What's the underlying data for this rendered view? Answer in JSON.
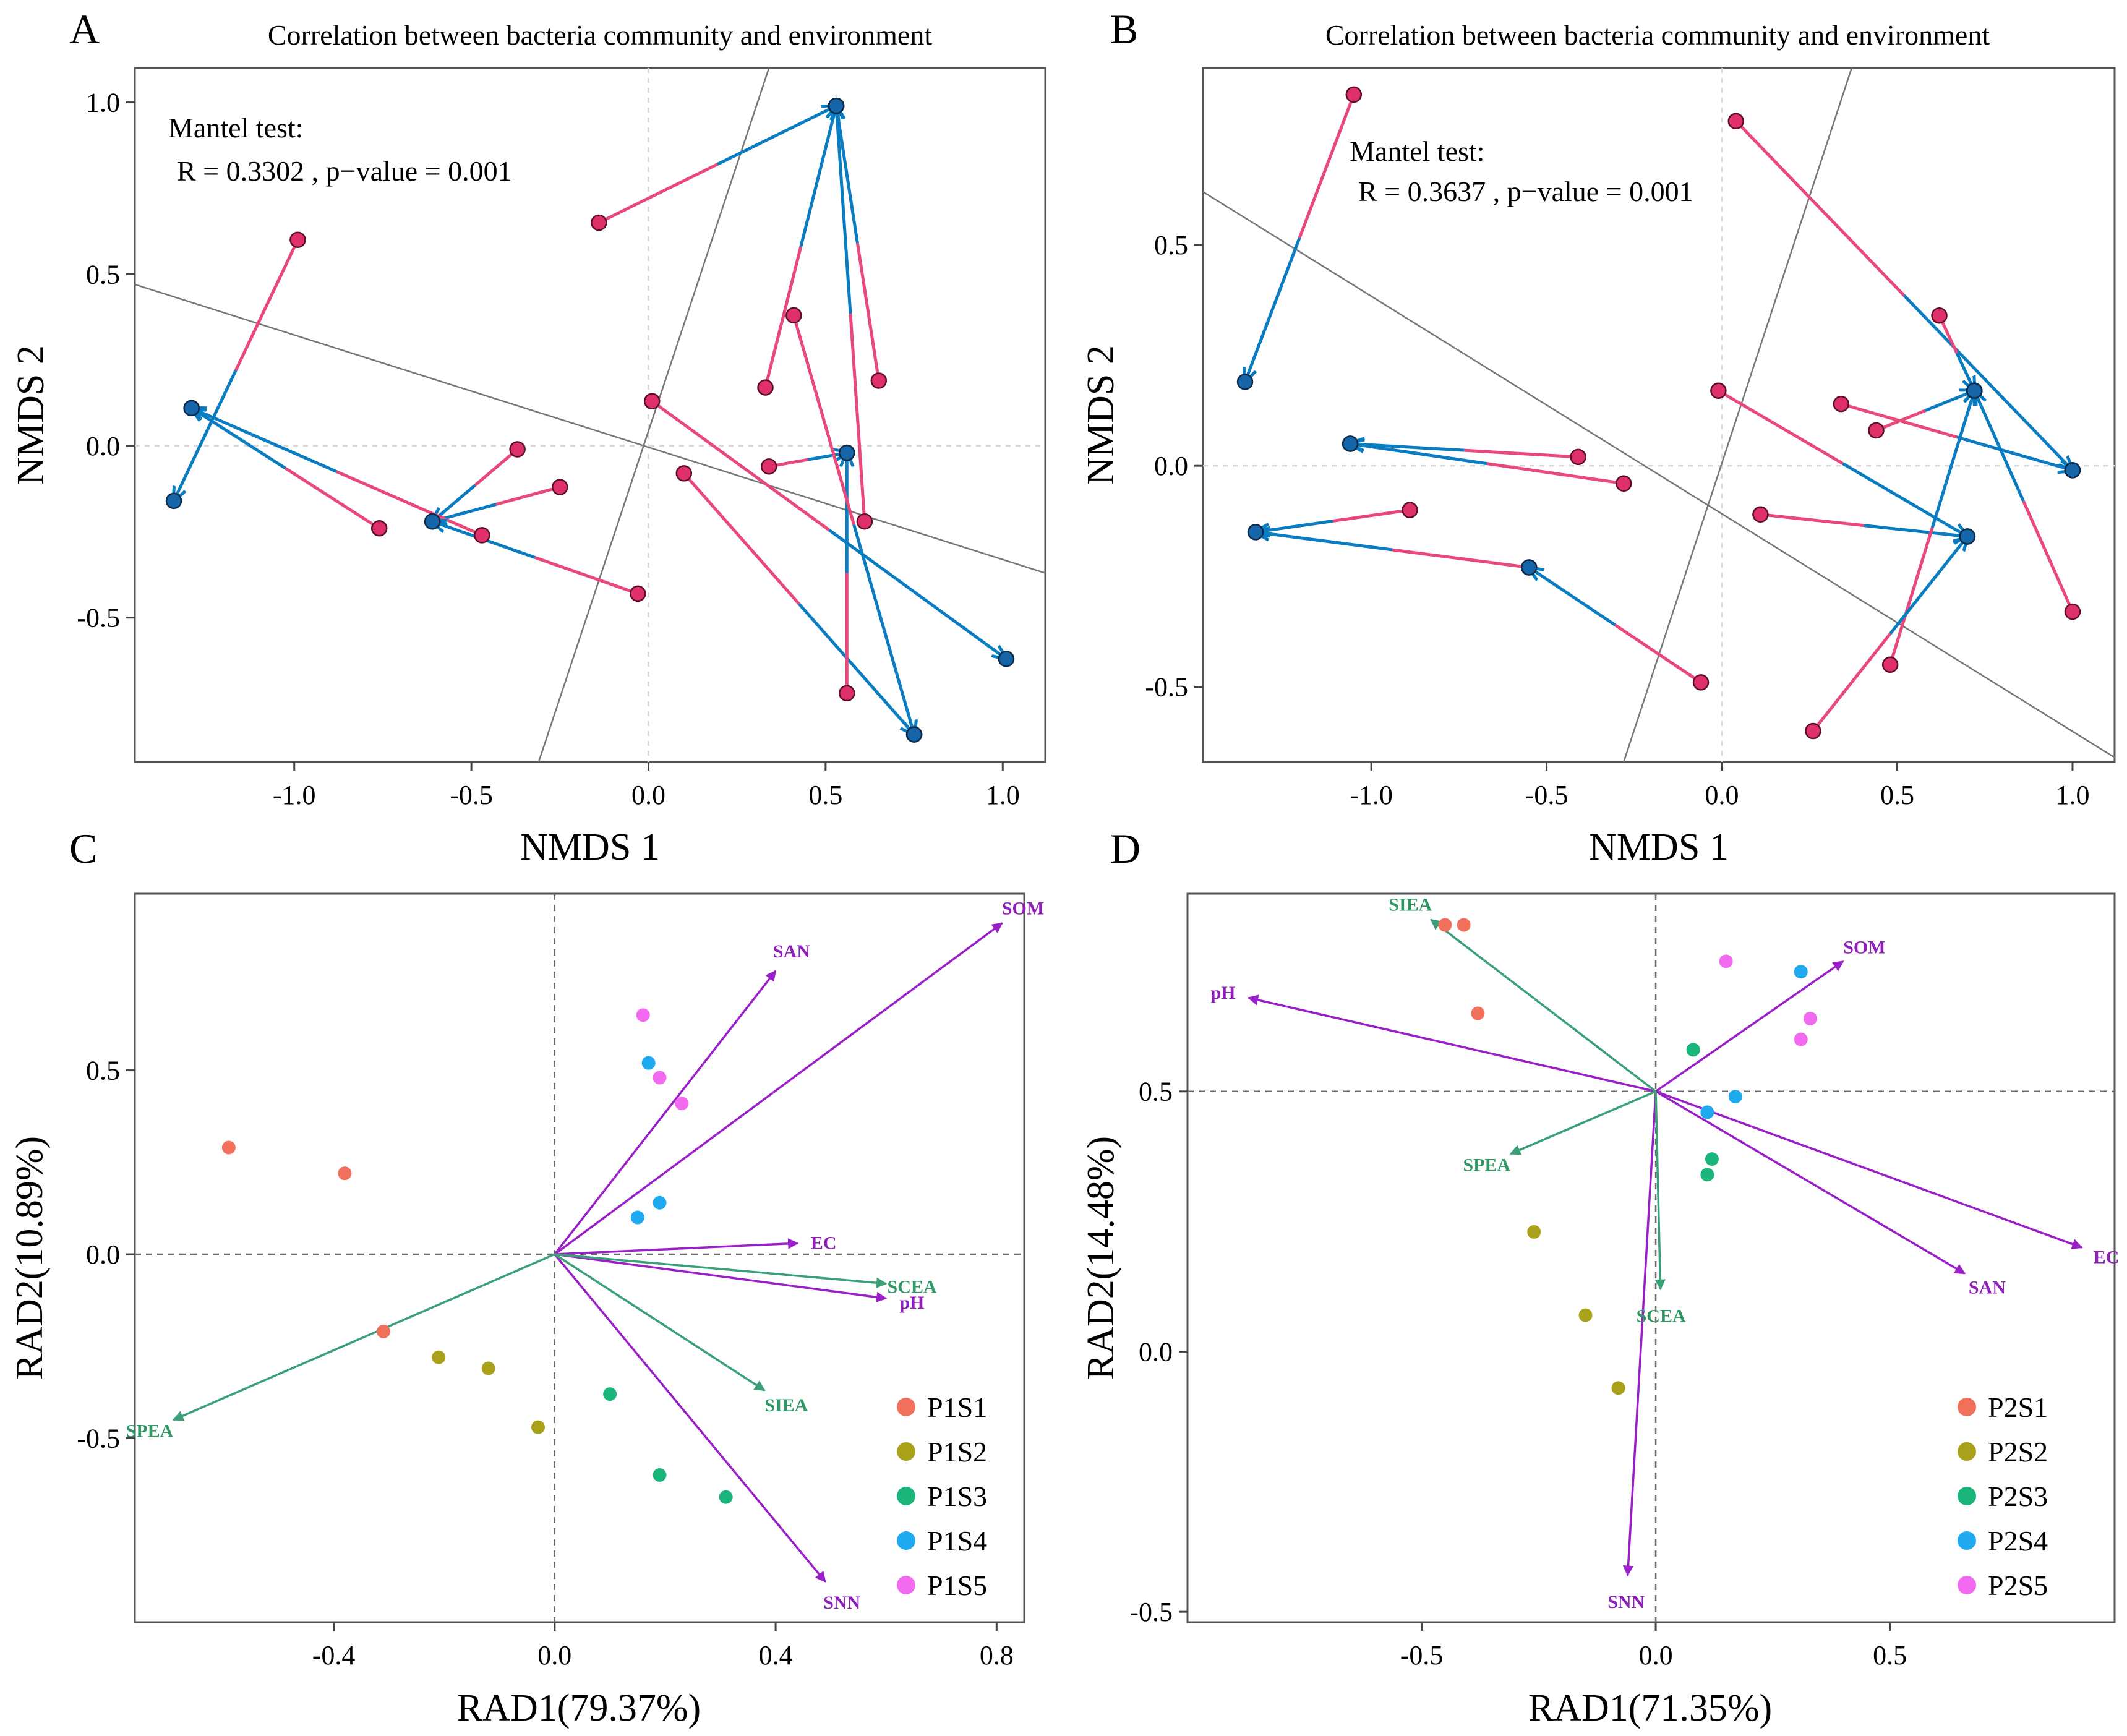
{
  "colors": {
    "procrustes_target": "#e8497a",
    "procrustes_point": "#e0306a",
    "procrustes_arrow": "#0a7cc2",
    "procrustes_dot": "#1565a8",
    "env_arrow": "#9b1fc9",
    "soil_arrow": "#3aa077",
    "env_label": "#8e1fb8",
    "soil_label": "#2e9864",
    "S1": "#f0705c",
    "S2": "#a9a11a",
    "S3": "#19b57a",
    "S4": "#1faaf0",
    "S5": "#f26af0"
  },
  "chart_data": [
    {
      "panel": "A",
      "type": "scatter",
      "subtype": "procrustes",
      "title": "Correlation between bacteria community and environment",
      "xlabel": "NMDS 1",
      "ylabel": "NMDS 2",
      "xlim": [
        -1.45,
        1.12
      ],
      "ylim": [
        -0.92,
        1.1
      ],
      "xticks": [
        -1.0,
        -0.5,
        0.0,
        0.5,
        1.0
      ],
      "yticks": [
        -0.5,
        0.0,
        0.5,
        1.0
      ],
      "xtick_labels": [
        "-1.0",
        "-0.5",
        "0.0",
        "0.5",
        "1.0"
      ],
      "ytick_labels": [
        "-0.5",
        "0.0",
        "0.5",
        "1.0"
      ],
      "annotation": [
        "Mantel test:",
        "R = 0.3302 , p−value = 0.001"
      ],
      "rotation_axes": [
        {
          "x": [
            -1.45,
            1.12
          ],
          "y": [
            0.47,
            -0.37
          ]
        },
        {
          "x": [
            -0.31,
            0.34
          ],
          "y": [
            -0.92,
            1.1
          ]
        }
      ],
      "pairs": [
        {
          "a": [
            -0.99,
            0.6
          ],
          "b": [
            -1.34,
            -0.16
          ]
        },
        {
          "a": [
            -0.76,
            -0.24
          ],
          "b": [
            -1.29,
            0.11
          ]
        },
        {
          "a": [
            -0.37,
            -0.01
          ],
          "b": [
            -0.61,
            -0.22
          ]
        },
        {
          "a": [
            -0.25,
            -0.12
          ],
          "b": [
            -0.61,
            -0.22
          ]
        },
        {
          "a": [
            -0.47,
            -0.26
          ],
          "b": [
            -1.29,
            0.11
          ]
        },
        {
          "a": [
            -0.03,
            -0.43
          ],
          "b": [
            -0.61,
            -0.22
          ]
        },
        {
          "a": [
            -0.14,
            0.65
          ],
          "b": [
            0.53,
            0.99
          ]
        },
        {
          "a": [
            0.33,
            0.17
          ],
          "b": [
            0.53,
            0.99
          ]
        },
        {
          "a": [
            0.01,
            0.13
          ],
          "b": [
            1.01,
            -0.62
          ]
        },
        {
          "a": [
            0.1,
            -0.08
          ],
          "b": [
            0.75,
            -0.84
          ]
        },
        {
          "a": [
            0.56,
            -0.72
          ],
          "b": [
            0.56,
            -0.02
          ]
        },
        {
          "a": [
            0.34,
            -0.06
          ],
          "b": [
            0.56,
            -0.02
          ]
        },
        {
          "a": [
            0.41,
            0.38
          ],
          "b": [
            0.75,
            -0.84
          ]
        },
        {
          "a": [
            0.65,
            0.19
          ],
          "b": [
            0.53,
            0.99
          ]
        },
        {
          "a": [
            0.61,
            -0.22
          ],
          "b": [
            0.53,
            0.99
          ]
        }
      ]
    },
    {
      "panel": "B",
      "type": "scatter",
      "subtype": "procrustes",
      "title": "Correlation between bacteria community and environment",
      "xlabel": "NMDS 1",
      "ylabel": "NMDS 2",
      "xlim": [
        -1.48,
        1.12
      ],
      "ylim": [
        -0.67,
        0.9
      ],
      "xticks": [
        -1.0,
        -0.5,
        0.0,
        0.5,
        1.0
      ],
      "yticks": [
        -0.5,
        0.0,
        0.5
      ],
      "xtick_labels": [
        "-1.0",
        "-0.5",
        "0.0",
        "0.5",
        "1.0"
      ],
      "ytick_labels": [
        "-0.5",
        "0.0",
        "0.5"
      ],
      "annotation": [
        "Mantel test:",
        "R = 0.3637 , p−value = 0.001"
      ],
      "rotation_axes": [
        {
          "x": [
            -1.48,
            1.12
          ],
          "y": [
            0.62,
            -0.66
          ]
        },
        {
          "x": [
            -0.28,
            0.37
          ],
          "y": [
            -0.67,
            0.9
          ]
        }
      ],
      "pairs": [
        {
          "a": [
            -1.05,
            0.84
          ],
          "b": [
            -1.36,
            0.19
          ]
        },
        {
          "a": [
            -0.41,
            0.02
          ],
          "b": [
            -1.06,
            0.05
          ]
        },
        {
          "a": [
            -0.28,
            -0.04
          ],
          "b": [
            -1.06,
            0.05
          ]
        },
        {
          "a": [
            -0.89,
            -0.1
          ],
          "b": [
            -1.33,
            -0.15
          ]
        },
        {
          "a": [
            -0.55,
            -0.23
          ],
          "b": [
            -1.33,
            -0.15
          ]
        },
        {
          "a": [
            -0.06,
            -0.49
          ],
          "b": [
            -0.55,
            -0.23
          ]
        },
        {
          "a": [
            0.04,
            0.78
          ],
          "b": [
            1.0,
            -0.01
          ]
        },
        {
          "a": [
            0.62,
            0.34
          ],
          "b": [
            0.72,
            0.17
          ]
        },
        {
          "a": [
            0.34,
            0.14
          ],
          "b": [
            1.0,
            -0.01
          ]
        },
        {
          "a": [
            0.44,
            0.08
          ],
          "b": [
            0.72,
            0.17
          ]
        },
        {
          "a": [
            -0.01,
            0.17
          ],
          "b": [
            0.7,
            -0.16
          ]
        },
        {
          "a": [
            0.11,
            -0.11
          ],
          "b": [
            0.7,
            -0.16
          ]
        },
        {
          "a": [
            1.0,
            -0.33
          ],
          "b": [
            0.72,
            0.17
          ]
        },
        {
          "a": [
            0.48,
            -0.45
          ],
          "b": [
            0.72,
            0.17
          ]
        },
        {
          "a": [
            0.26,
            -0.6
          ],
          "b": [
            0.7,
            -0.16
          ]
        }
      ]
    },
    {
      "panel": "C",
      "type": "scatter",
      "subtype": "biplot",
      "xlabel": "RAD1(79.37%)",
      "ylabel": "RAD2(10.89%)",
      "xlim": [
        -0.76,
        0.85
      ],
      "ylim": [
        -1.0,
        0.98
      ],
      "xticks": [
        -0.4,
        0.0,
        0.4,
        0.8
      ],
      "yticks": [
        -0.5,
        0.0,
        0.5
      ],
      "xtick_labels": [
        "-0.4",
        "0.0",
        "0.4",
        "0.8"
      ],
      "ytick_labels": [
        "-0.5",
        "0.0",
        "0.5"
      ],
      "arrows": [
        {
          "label": "SOM",
          "group": "env",
          "x": 0.81,
          "y": 0.9
        },
        {
          "label": "SAN",
          "group": "env",
          "x": 0.4,
          "y": 0.77
        },
        {
          "label": "EC",
          "group": "env",
          "x": 0.44,
          "y": 0.03
        },
        {
          "label": "pH",
          "group": "env",
          "x": 0.6,
          "y": -0.12
        },
        {
          "label": "SNN",
          "group": "env",
          "x": 0.49,
          "y": -0.89
        },
        {
          "label": "SCEA",
          "group": "soil",
          "x": 0.6,
          "y": -0.08
        },
        {
          "label": "SIEA",
          "group": "soil",
          "x": 0.38,
          "y": -0.37
        },
        {
          "label": "SPEA",
          "group": "soil",
          "x": -0.69,
          "y": -0.45
        }
      ],
      "legend": [
        "P1S1",
        "P1S2",
        "P1S3",
        "P1S4",
        "P1S5"
      ],
      "points": [
        {
          "group": "S1",
          "x": -0.59,
          "y": 0.29
        },
        {
          "group": "S1",
          "x": -0.38,
          "y": 0.22
        },
        {
          "group": "S1",
          "x": -0.31,
          "y": -0.21
        },
        {
          "group": "S2",
          "x": -0.21,
          "y": -0.28
        },
        {
          "group": "S2",
          "x": -0.12,
          "y": -0.31
        },
        {
          "group": "S2",
          "x": -0.03,
          "y": -0.47
        },
        {
          "group": "S3",
          "x": 0.1,
          "y": -0.38
        },
        {
          "group": "S3",
          "x": 0.19,
          "y": -0.6
        },
        {
          "group": "S3",
          "x": 0.31,
          "y": -0.66
        },
        {
          "group": "S4",
          "x": 0.17,
          "y": 0.52
        },
        {
          "group": "S4",
          "x": 0.19,
          "y": 0.14
        },
        {
          "group": "S4",
          "x": 0.15,
          "y": 0.1
        },
        {
          "group": "S5",
          "x": 0.16,
          "y": 0.65
        },
        {
          "group": "S5",
          "x": 0.19,
          "y": 0.48
        },
        {
          "group": "S5",
          "x": 0.23,
          "y": 0.41
        }
      ]
    },
    {
      "panel": "D",
      "type": "scatter",
      "subtype": "biplot",
      "xlabel": "RAD1(71.35%)",
      "ylabel": "RAD2(14.48%)",
      "xlim": [
        -1.0,
        0.98
      ],
      "ylim": [
        -0.52,
        0.88
      ],
      "xticks": [
        -0.5,
        0.0,
        0.5
      ],
      "yticks": [
        -0.5,
        0.0,
        0.5
      ],
      "xtick_labels": [
        "-0.5",
        "0.0",
        "0.5"
      ],
      "ytick_labels": [
        "-0.5",
        "0.0",
        "0.5"
      ],
      "origin": [
        0.0,
        0.5
      ],
      "arrows": [
        {
          "label": "SOM",
          "group": "env",
          "x": 0.4,
          "y": 0.75
        },
        {
          "label": "pH",
          "group": "env",
          "x": -0.87,
          "y": 0.68
        },
        {
          "label": "EC",
          "group": "env",
          "x": 0.91,
          "y": 0.2
        },
        {
          "label": "SAN",
          "group": "env",
          "x": 0.66,
          "y": 0.15
        },
        {
          "label": "SNN",
          "group": "env",
          "x": -0.06,
          "y": -0.43
        },
        {
          "label": "SIEA",
          "group": "soil",
          "x": -0.48,
          "y": 0.83
        },
        {
          "label": "SPEA",
          "group": "soil",
          "x": -0.31,
          "y": 0.38
        },
        {
          "label": "SCEA",
          "group": "soil",
          "x": 0.01,
          "y": 0.12
        }
      ],
      "legend": [
        "P2S1",
        "P2S2",
        "P2S3",
        "P2S4",
        "P2S5"
      ],
      "points": [
        {
          "group": "S1",
          "x": -0.45,
          "y": 0.82
        },
        {
          "group": "S1",
          "x": -0.41,
          "y": 0.82
        },
        {
          "group": "S1",
          "x": -0.38,
          "y": 0.65
        },
        {
          "group": "S2",
          "x": -0.26,
          "y": 0.23
        },
        {
          "group": "S2",
          "x": -0.15,
          "y": 0.07
        },
        {
          "group": "S2",
          "x": -0.08,
          "y": -0.07
        },
        {
          "group": "S3",
          "x": 0.08,
          "y": 0.58
        },
        {
          "group": "S3",
          "x": 0.12,
          "y": 0.37
        },
        {
          "group": "S3",
          "x": 0.11,
          "y": 0.34
        },
        {
          "group": "S4",
          "x": 0.31,
          "y": 0.73
        },
        {
          "group": "S4",
          "x": 0.17,
          "y": 0.49
        },
        {
          "group": "S4",
          "x": 0.11,
          "y": 0.46
        },
        {
          "group": "S5",
          "x": 0.15,
          "y": 0.75
        },
        {
          "group": "S5",
          "x": 0.33,
          "y": 0.64
        },
        {
          "group": "S5",
          "x": 0.31,
          "y": 0.6
        }
      ]
    }
  ],
  "panel_letters": [
    "A",
    "B",
    "C",
    "D"
  ]
}
